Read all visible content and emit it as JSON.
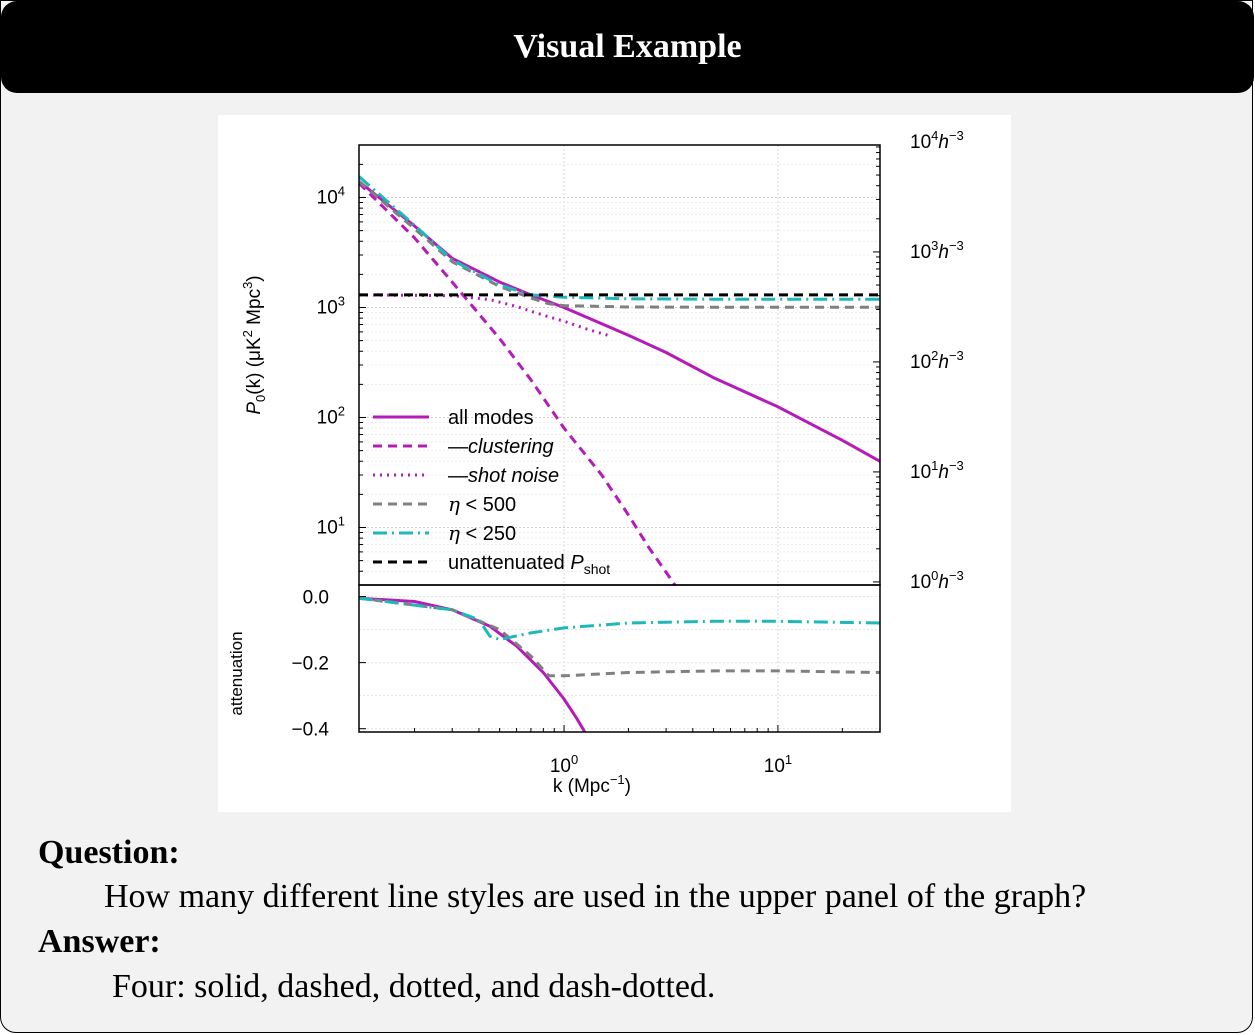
{
  "header": {
    "title": "Visual Example"
  },
  "question": {
    "label": "Question:",
    "text": "How many different line styles are used in the upper panel of the graph?"
  },
  "answer": {
    "label": "Answer:",
    "text": "Four: solid, dashed, dotted, and dash-dotted."
  },
  "colors": {
    "magenta": "#b51bb8",
    "teal": "#1fb8b8",
    "gray": "#808080",
    "black": "#000000"
  },
  "chart_data": {
    "type": "line",
    "x_scale": "log",
    "xlim": [
      0.11,
      30
    ],
    "xticks": [
      {
        "value": 1,
        "base": "10",
        "exp": "0"
      },
      {
        "value": 10,
        "base": "10",
        "exp": "1"
      }
    ],
    "xlabel": {
      "pre": "k (Mpc",
      "exp": "−1",
      "post": ")"
    },
    "upper": {
      "y_scale": "log",
      "ylim": [
        3,
        30000
      ],
      "ylabel": {
        "a": "P",
        "sub": "0",
        "b": "(k) (μK",
        "sup1": "2",
        "c": " Mpc",
        "sup2": "3",
        "d": ")"
      },
      "yticks": [
        {
          "value": 10,
          "base": "10",
          "exp": "1"
        },
        {
          "value": 100,
          "base": "10",
          "exp": "2"
        },
        {
          "value": 1000,
          "base": "10",
          "exp": "3"
        },
        {
          "value": 10000,
          "base": "10",
          "exp": "4"
        }
      ],
      "right_ticks": [
        {
          "value": 3.2,
          "base": "10",
          "exp": "0",
          "unit": "h",
          "uexp": "−3"
        },
        {
          "value": 32,
          "base": "10",
          "exp": "1",
          "unit": "h",
          "uexp": "−3"
        },
        {
          "value": 320,
          "base": "10",
          "exp": "2",
          "unit": "h",
          "uexp": "−3"
        },
        {
          "value": 3200,
          "base": "10",
          "exp": "3",
          "unit": "h",
          "uexp": "−3"
        },
        {
          "value": 32000,
          "base": "10",
          "exp": "4",
          "unit": "h",
          "uexp": "−3"
        }
      ],
      "series": [
        {
          "name": "all modes",
          "style": "solid",
          "color": "#b51bb8",
          "points": [
            [
              0.11,
              14000
            ],
            [
              0.2,
              5500
            ],
            [
              0.3,
              2800
            ],
            [
              0.5,
              1700
            ],
            [
              0.7,
              1300
            ],
            [
              1,
              1000
            ],
            [
              2,
              560
            ],
            [
              3,
              390
            ],
            [
              5,
              230
            ],
            [
              10,
              125
            ],
            [
              20,
              62
            ],
            [
              30,
              40
            ]
          ]
        },
        {
          "name": "clustering",
          "legend_prefix": "—",
          "style": "dashed",
          "color": "#b51bb8",
          "points": [
            [
              0.11,
              13500
            ],
            [
              0.2,
              4300
            ],
            [
              0.3,
              1700
            ],
            [
              0.5,
              520
            ],
            [
              0.7,
              220
            ],
            [
              1,
              80
            ],
            [
              1.5,
              30
            ],
            [
              2,
              13
            ],
            [
              2.5,
              6.5
            ],
            [
              3.3,
              3
            ]
          ]
        },
        {
          "name": "shot noise",
          "legend_prefix": "—",
          "style": "dotted",
          "color": "#b51bb8",
          "points": [
            [
              0.11,
              1300
            ],
            [
              0.3,
              1280
            ],
            [
              0.45,
              1180
            ],
            [
              0.6,
              1020
            ],
            [
              0.8,
              850
            ],
            [
              1,
              750
            ],
            [
              1.3,
              630
            ],
            [
              1.6,
              560
            ]
          ]
        },
        {
          "name": "η < 500",
          "style": "dashed",
          "color": "#808080",
          "points": [
            [
              0.11,
              14000
            ],
            [
              0.2,
              5200
            ],
            [
              0.3,
              2600
            ],
            [
              0.5,
              1550
            ],
            [
              0.7,
              1220
            ],
            [
              0.85,
              1080
            ],
            [
              1,
              1040
            ],
            [
              2,
              1010
            ],
            [
              5,
              1005
            ],
            [
              10,
              1005
            ],
            [
              30,
              1005
            ]
          ]
        },
        {
          "name": "η < 250",
          "style": "dashdot",
          "color": "#1fb8b8",
          "points": [
            [
              0.11,
              15500
            ],
            [
              0.2,
              5600
            ],
            [
              0.3,
              2700
            ],
            [
              0.5,
              1600
            ],
            [
              0.7,
              1300
            ],
            [
              1,
              1240
            ],
            [
              2,
              1200
            ],
            [
              5,
              1190
            ],
            [
              10,
              1190
            ],
            [
              30,
              1190
            ]
          ]
        },
        {
          "name": "unattenuated P",
          "name_sub": "shot",
          "style": "dashed",
          "color": "#000000",
          "points": [
            [
              0.11,
              1300
            ],
            [
              30,
              1300
            ]
          ]
        }
      ]
    },
    "lower": {
      "ylabel": "attenuation",
      "ylim": [
        -0.41,
        0.035
      ],
      "yticks": [
        {
          "value": 0,
          "label": "0.0"
        },
        {
          "value": -0.2,
          "label": "−0.2"
        },
        {
          "value": -0.4,
          "label": "−0.4"
        }
      ],
      "series": [
        {
          "name": "all modes",
          "style": "solid",
          "color": "#b51bb8",
          "points": [
            [
              0.11,
              -0.005
            ],
            [
              0.2,
              -0.015
            ],
            [
              0.3,
              -0.04
            ],
            [
              0.45,
              -0.09
            ],
            [
              0.6,
              -0.15
            ],
            [
              0.8,
              -0.23
            ],
            [
              1,
              -0.31
            ],
            [
              1.15,
              -0.37
            ],
            [
              1.25,
              -0.41
            ]
          ]
        },
        {
          "name": "η < 500",
          "style": "dashed",
          "color": "#808080",
          "points": [
            [
              0.11,
              -0.005
            ],
            [
              0.3,
              -0.04
            ],
            [
              0.5,
              -0.1
            ],
            [
              0.7,
              -0.18
            ],
            [
              0.85,
              -0.24
            ],
            [
              1,
              -0.24
            ],
            [
              2,
              -0.23
            ],
            [
              5,
              -0.225
            ],
            [
              10,
              -0.225
            ],
            [
              30,
              -0.23
            ]
          ]
        },
        {
          "name": "η < 250",
          "style": "dashdot",
          "color": "#1fb8b8",
          "points": [
            [
              0.11,
              -0.005
            ],
            [
              0.3,
              -0.04
            ],
            [
              0.4,
              -0.07
            ],
            [
              0.45,
              -0.12
            ],
            [
              0.5,
              -0.13
            ],
            [
              0.7,
              -0.11
            ],
            [
              1,
              -0.095
            ],
            [
              2,
              -0.08
            ],
            [
              5,
              -0.075
            ],
            [
              10,
              -0.075
            ],
            [
              30,
              -0.08
            ]
          ]
        }
      ]
    }
  }
}
